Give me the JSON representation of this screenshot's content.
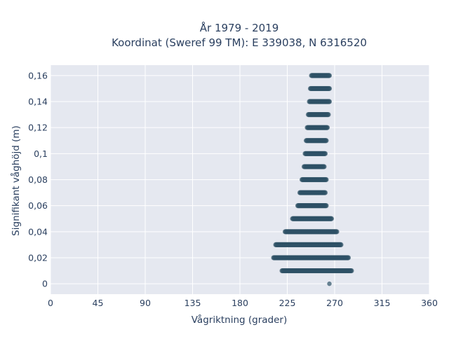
{
  "chart_data": {
    "type": "scatter",
    "title_lines": [
      "År 1979 - 2019",
      "Koordinat (Sweref 99 TM): E 339038, N 6316520"
    ],
    "xlabel": "Vågriktning (grader)",
    "ylabel": "Signifikant våghöjd (m)",
    "xlim": [
      0,
      360
    ],
    "ylim": [
      -0.008,
      0.168
    ],
    "x_ticks": [
      0,
      45,
      90,
      135,
      180,
      225,
      270,
      315,
      360
    ],
    "x_tick_labels": [
      "0",
      "45",
      "90",
      "135",
      "180",
      "225",
      "270",
      "315",
      "360"
    ],
    "y_ticks": [
      0,
      0.02,
      0.04,
      0.06,
      0.08,
      0.1,
      0.12,
      0.14,
      0.16
    ],
    "y_tick_labels": [
      "0",
      "0,02",
      "0,04",
      "0,06",
      "0,08",
      "0,1",
      "0,12",
      "0,14",
      "0,16"
    ],
    "grid": true,
    "marker_color": "#2e5266",
    "plot_background": "#e5e8f0",
    "series": [
      {
        "bands": [
          {
            "y": 0.0,
            "x_min": 265,
            "x_max": 265
          },
          {
            "y": 0.01,
            "x_min": 220,
            "x_max": 286
          },
          {
            "y": 0.02,
            "x_min": 212,
            "x_max": 283
          },
          {
            "y": 0.03,
            "x_min": 214,
            "x_max": 276
          },
          {
            "y": 0.04,
            "x_min": 223,
            "x_max": 272
          },
          {
            "y": 0.05,
            "x_min": 230,
            "x_max": 267
          },
          {
            "y": 0.06,
            "x_min": 235,
            "x_max": 262
          },
          {
            "y": 0.07,
            "x_min": 237,
            "x_max": 261
          },
          {
            "y": 0.08,
            "x_min": 239,
            "x_max": 262
          },
          {
            "y": 0.09,
            "x_min": 241,
            "x_max": 260
          },
          {
            "y": 0.1,
            "x_min": 242,
            "x_max": 261
          },
          {
            "y": 0.11,
            "x_min": 243,
            "x_max": 262
          },
          {
            "y": 0.12,
            "x_min": 244,
            "x_max": 263
          },
          {
            "y": 0.13,
            "x_min": 245,
            "x_max": 264
          },
          {
            "y": 0.14,
            "x_min": 246,
            "x_max": 265
          },
          {
            "y": 0.15,
            "x_min": 247,
            "x_max": 265
          },
          {
            "y": 0.16,
            "x_min": 248,
            "x_max": 265
          }
        ]
      }
    ]
  }
}
